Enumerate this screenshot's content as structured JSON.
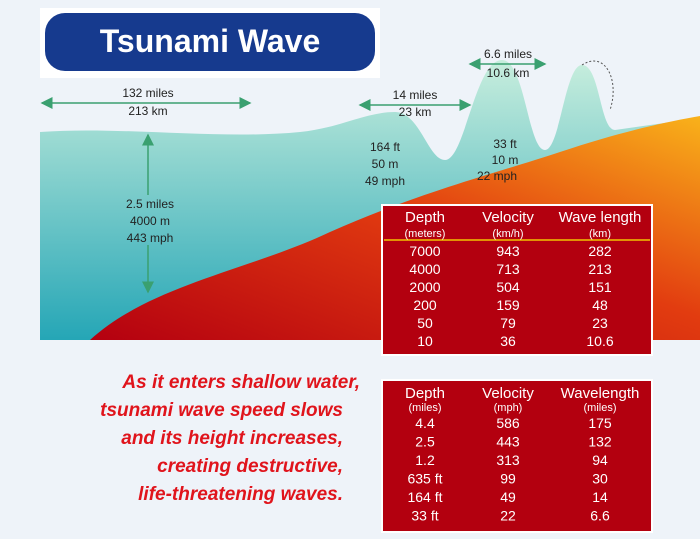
{
  "header": {
    "title": "Tsunami Wave"
  },
  "annotations": {
    "open_ocean_length": [
      "132 miles",
      "213 km"
    ],
    "mid_length": [
      "14 miles",
      "23 km"
    ],
    "shore_length": [
      "6.6 miles",
      "10.6 km"
    ],
    "mid_point": [
      "164 ft",
      "50 m",
      "49 mph"
    ],
    "shore_point": [
      "33 ft",
      "10 m",
      "22 mph"
    ],
    "deep_point": [
      "2.5 miles",
      "4000 m",
      "443 mph"
    ]
  },
  "caption": [
    "As it enters shallow water,",
    "tsunami wave speed slows",
    "and its height increases,",
    "creating destructive,",
    "life-threatening waves."
  ],
  "table_metric": {
    "headers": [
      "Depth",
      "Velocity",
      "Wave length"
    ],
    "units": [
      "(meters)",
      "(km/h)",
      "(km)"
    ],
    "rows": [
      [
        7000,
        943,
        282
      ],
      [
        4000,
        713,
        213
      ],
      [
        2000,
        504,
        151
      ],
      [
        200,
        159,
        48
      ],
      [
        50,
        79,
        23
      ],
      [
        10,
        36,
        10.6
      ]
    ]
  },
  "table_imperial": {
    "headers": [
      "Depth",
      "Velocity",
      "Wavelength"
    ],
    "units": [
      "(miles)",
      "(mph)",
      "(miles)"
    ],
    "rows": [
      [
        4.4,
        586,
        175
      ],
      [
        2.5,
        443,
        132
      ],
      [
        1.2,
        313,
        94
      ],
      [
        "635 ft",
        99,
        30
      ],
      [
        "164 ft",
        49,
        14
      ],
      [
        "33 ft",
        22,
        6.6
      ]
    ]
  }
}
